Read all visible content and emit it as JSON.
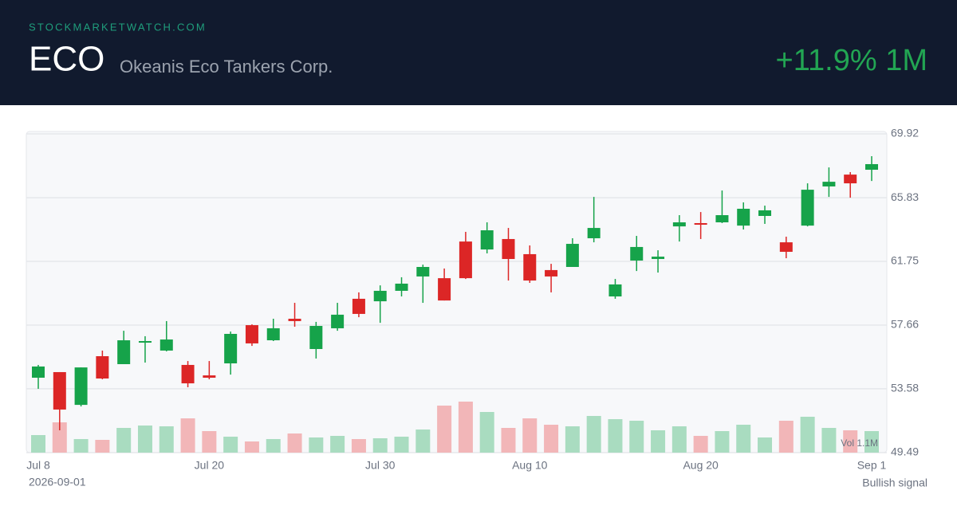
{
  "header": {
    "site": "STOCKMARKETWATCH.COM",
    "ticker": "ECO",
    "company": "Okeanis Eco Tankers Corp.",
    "change": "+11.9% 1M"
  },
  "footer": {
    "date": "2026-09-01",
    "signal": "Bullish signal"
  },
  "chart_data": {
    "type": "candlestick",
    "categories": [
      "Jul 8",
      null,
      null,
      null,
      null,
      null,
      null,
      null,
      "Jul 20",
      null,
      null,
      null,
      null,
      null,
      null,
      null,
      "Jul 30",
      null,
      null,
      null,
      null,
      null,
      null,
      "Aug 10",
      null,
      null,
      null,
      null,
      null,
      null,
      null,
      "Aug 20",
      null,
      null,
      null,
      null,
      null,
      null,
      null,
      "Sep 1"
    ],
    "open": [
      54.29,
      54.65,
      52.55,
      55.67,
      55.16,
      56.54,
      56.03,
      55.11,
      54.44,
      55.21,
      57.66,
      56.69,
      58.07,
      56.13,
      57.46,
      59.35,
      59.19,
      59.86,
      60.78,
      60.67,
      63.02,
      62.51,
      63.18,
      62.21,
      61.19,
      61.39,
      63.23,
      59.5,
      61.8,
      61.9,
      63.99,
      64.2,
      64.25,
      64.04,
      64.66,
      62.97,
      64.04,
      66.55,
      67.31,
      67.62
    ],
    "high": [
      55.11,
      54.65,
      54.95,
      56.03,
      57.3,
      56.95,
      57.92,
      55.36,
      55.36,
      57.25,
      57.71,
      58.07,
      59.09,
      57.87,
      59.09,
      59.76,
      60.21,
      60.73,
      61.54,
      61.29,
      63.64,
      64.25,
      63.89,
      62.77,
      61.59,
      63.23,
      65.88,
      60.62,
      63.38,
      62.46,
      64.71,
      64.91,
      66.29,
      65.53,
      65.32,
      63.33,
      66.75,
      67.77,
      67.47,
      68.49
    ],
    "low": [
      53.58,
      50.92,
      52.45,
      54.19,
      55.16,
      55.26,
      55.98,
      53.68,
      54.19,
      54.49,
      56.33,
      56.64,
      57.56,
      55.52,
      57.3,
      58.17,
      57.81,
      59.5,
      59.09,
      59.24,
      60.62,
      62.26,
      60.52,
      60.37,
      59.76,
      61.39,
      62.97,
      59.35,
      61.13,
      61.03,
      63.02,
      63.18,
      64.2,
      63.79,
      64.15,
      61.95,
      63.99,
      65.88,
      65.83,
      66.9
    ],
    "close": [
      55.01,
      52.25,
      54.95,
      54.24,
      56.69,
      56.64,
      56.74,
      53.93,
      54.29,
      57.1,
      56.49,
      57.46,
      57.92,
      57.61,
      58.33,
      58.38,
      59.86,
      60.32,
      61.39,
      59.24,
      60.67,
      63.74,
      61.9,
      60.52,
      60.78,
      62.87,
      63.89,
      60.27,
      62.67,
      62.05,
      64.25,
      64.1,
      64.71,
      65.12,
      65.02,
      62.36,
      66.34,
      66.85,
      66.75,
      67.98
    ],
    "volume": [
      898000,
      1551000,
      694000,
      653000,
      1265000,
      1388000,
      1347000,
      1755000,
      1102000,
      816000,
      571000,
      694000,
      980000,
      776000,
      857000,
      694000,
      735000,
      816000,
      1184000,
      2408000,
      2612000,
      2082000,
      1265000,
      1755000,
      1429000,
      1347000,
      1878000,
      1714000,
      1633000,
      1143000,
      1347000,
      857000,
      1102000,
      1429000,
      776000,
      1633000,
      1837000,
      1265000,
      1143000,
      1102000
    ],
    "volume_lim": [
      0,
      4000000
    ],
    "volume_label": "Vol 1.1M",
    "ylim": [
      49.49,
      69.92
    ],
    "yticks": [
      49.49,
      53.58,
      57.66,
      61.75,
      65.83,
      69.92
    ],
    "grid": true,
    "up_color": "#16a34a",
    "down_color": "#dc2626",
    "volume_up_color": "#a9dcc0",
    "volume_down_color": "#f2b6b8"
  }
}
